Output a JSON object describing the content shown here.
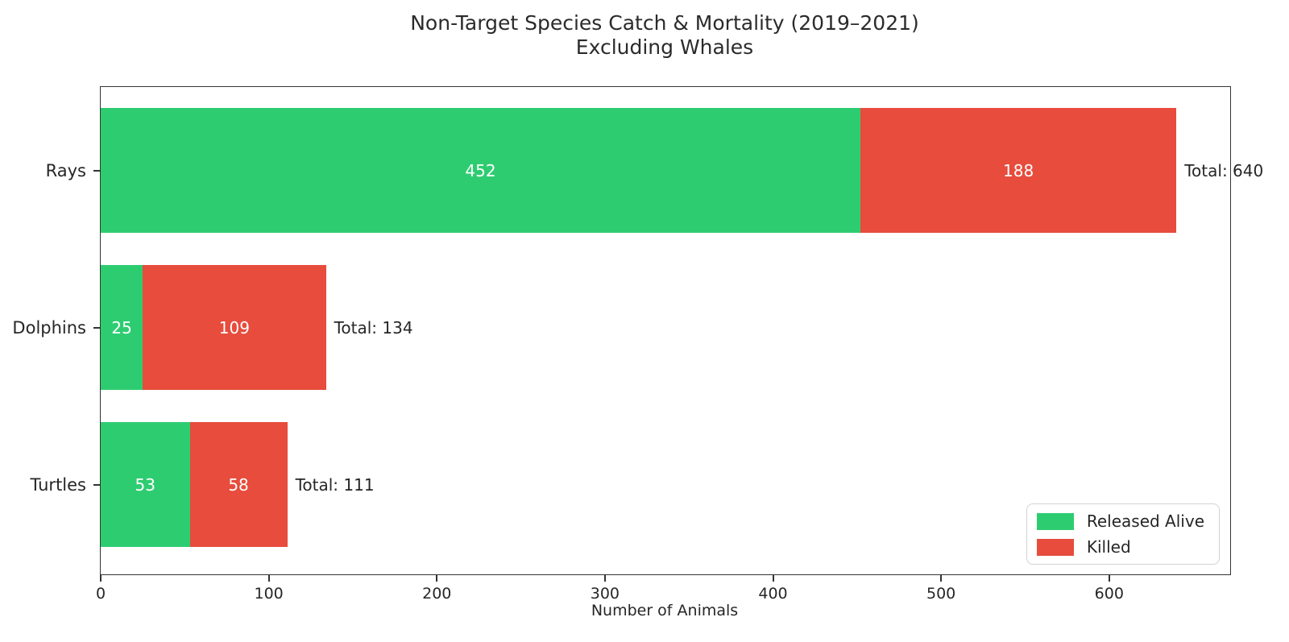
{
  "chart_data": {
    "type": "bar",
    "orientation": "horizontal",
    "stacked": true,
    "title": "Non-Target Species Catch & Mortality (2019–2021)",
    "subtitle": "Excluding Whales",
    "categories": [
      "Rays",
      "Dolphins",
      "Turtles"
    ],
    "series": [
      {
        "name": "Released Alive",
        "color": "#2ecc71",
        "values": [
          452,
          25,
          53
        ]
      },
      {
        "name": "Killed",
        "color": "#e74c3c",
        "values": [
          188,
          109,
          58
        ]
      }
    ],
    "totals": [
      640,
      134,
      111
    ],
    "total_label_prefix": "Total: ",
    "xlabel": "Number of Animals",
    "xticks": [
      0,
      100,
      200,
      300,
      400,
      500,
      600
    ],
    "xlim": [
      0,
      672
    ],
    "grid": false,
    "legend": {
      "position": "lower right",
      "entries": [
        "Released Alive",
        "Killed"
      ]
    },
    "value_label_color": "#ffffff",
    "spine_color": "#333333"
  }
}
